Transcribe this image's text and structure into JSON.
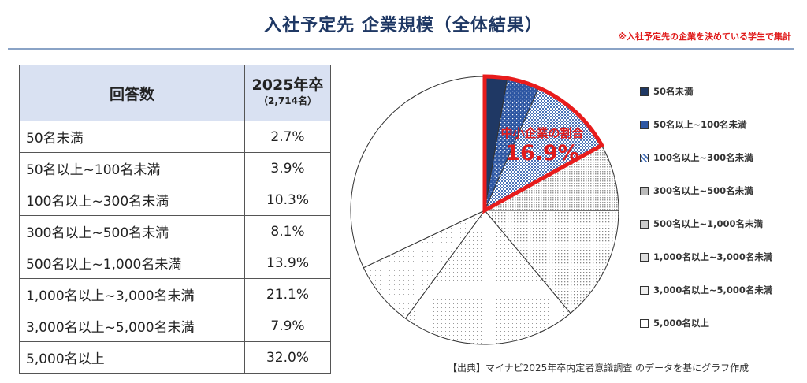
{
  "header": {
    "title": "入社予定先 企業規模（全体結果）",
    "note": "※入社予定先の企業を決めている学生で集計"
  },
  "table": {
    "col1": "回答数",
    "col2": "2025年卒",
    "col2_sub": "（2,714名）",
    "rows": [
      {
        "label": "50名未満",
        "value": "2.7%"
      },
      {
        "label": "50名以上~100名未満",
        "value": "3.9%"
      },
      {
        "label": "100名以上~300名未満",
        "value": "10.3%"
      },
      {
        "label": "300名以上~500名未満",
        "value": "8.1%"
      },
      {
        "label": "500名以上~1,000名未満",
        "value": "13.9%"
      },
      {
        "label": "1,000名以上~3,000名未満",
        "value": "21.1%"
      },
      {
        "label": "3,000名以上~5,000名未満",
        "value": "7.9%"
      },
      {
        "label": "5,000名以上",
        "value": "32.0%"
      }
    ]
  },
  "callout": {
    "label": "中小企業の割合",
    "value": "16.9%"
  },
  "source": "【出典】マイナビ2025年卒内定者意識調査 のデータを基にグラフ作成",
  "chart_data": {
    "type": "pie",
    "categories": [
      "50名未満",
      "50名以上~100名未満",
      "100名以上~300名未満",
      "300名以上~500名未満",
      "500名以上~1,000名未満",
      "1,000名以上~3,000名未満",
      "3,000名以上~5,000名未満",
      "5,000名以上"
    ],
    "values": [
      2.7,
      3.9,
      10.3,
      8.1,
      13.9,
      21.1,
      7.9,
      32.0
    ],
    "legend": [
      "50名未満",
      "50名以上~100名未満",
      "100名以上~300名未満",
      "300名以上~500名未満",
      "500名以上~1,000名未満",
      "1,000名以上~3,000名未満",
      "3,000名以上~5,000名未満",
      "5,000名以上"
    ],
    "legend_position": "right",
    "highlight": {
      "categories": [
        "50名未満",
        "50名以上~100名未満",
        "100名以上~300名未満"
      ],
      "color": "#e81c1c"
    },
    "colors": {
      "dark_navy": "#1f3864",
      "medium_blue": "#2e57a3",
      "light_blue": "#4a73b8",
      "gray_dots": "#888888",
      "white": "#ffffff"
    }
  }
}
